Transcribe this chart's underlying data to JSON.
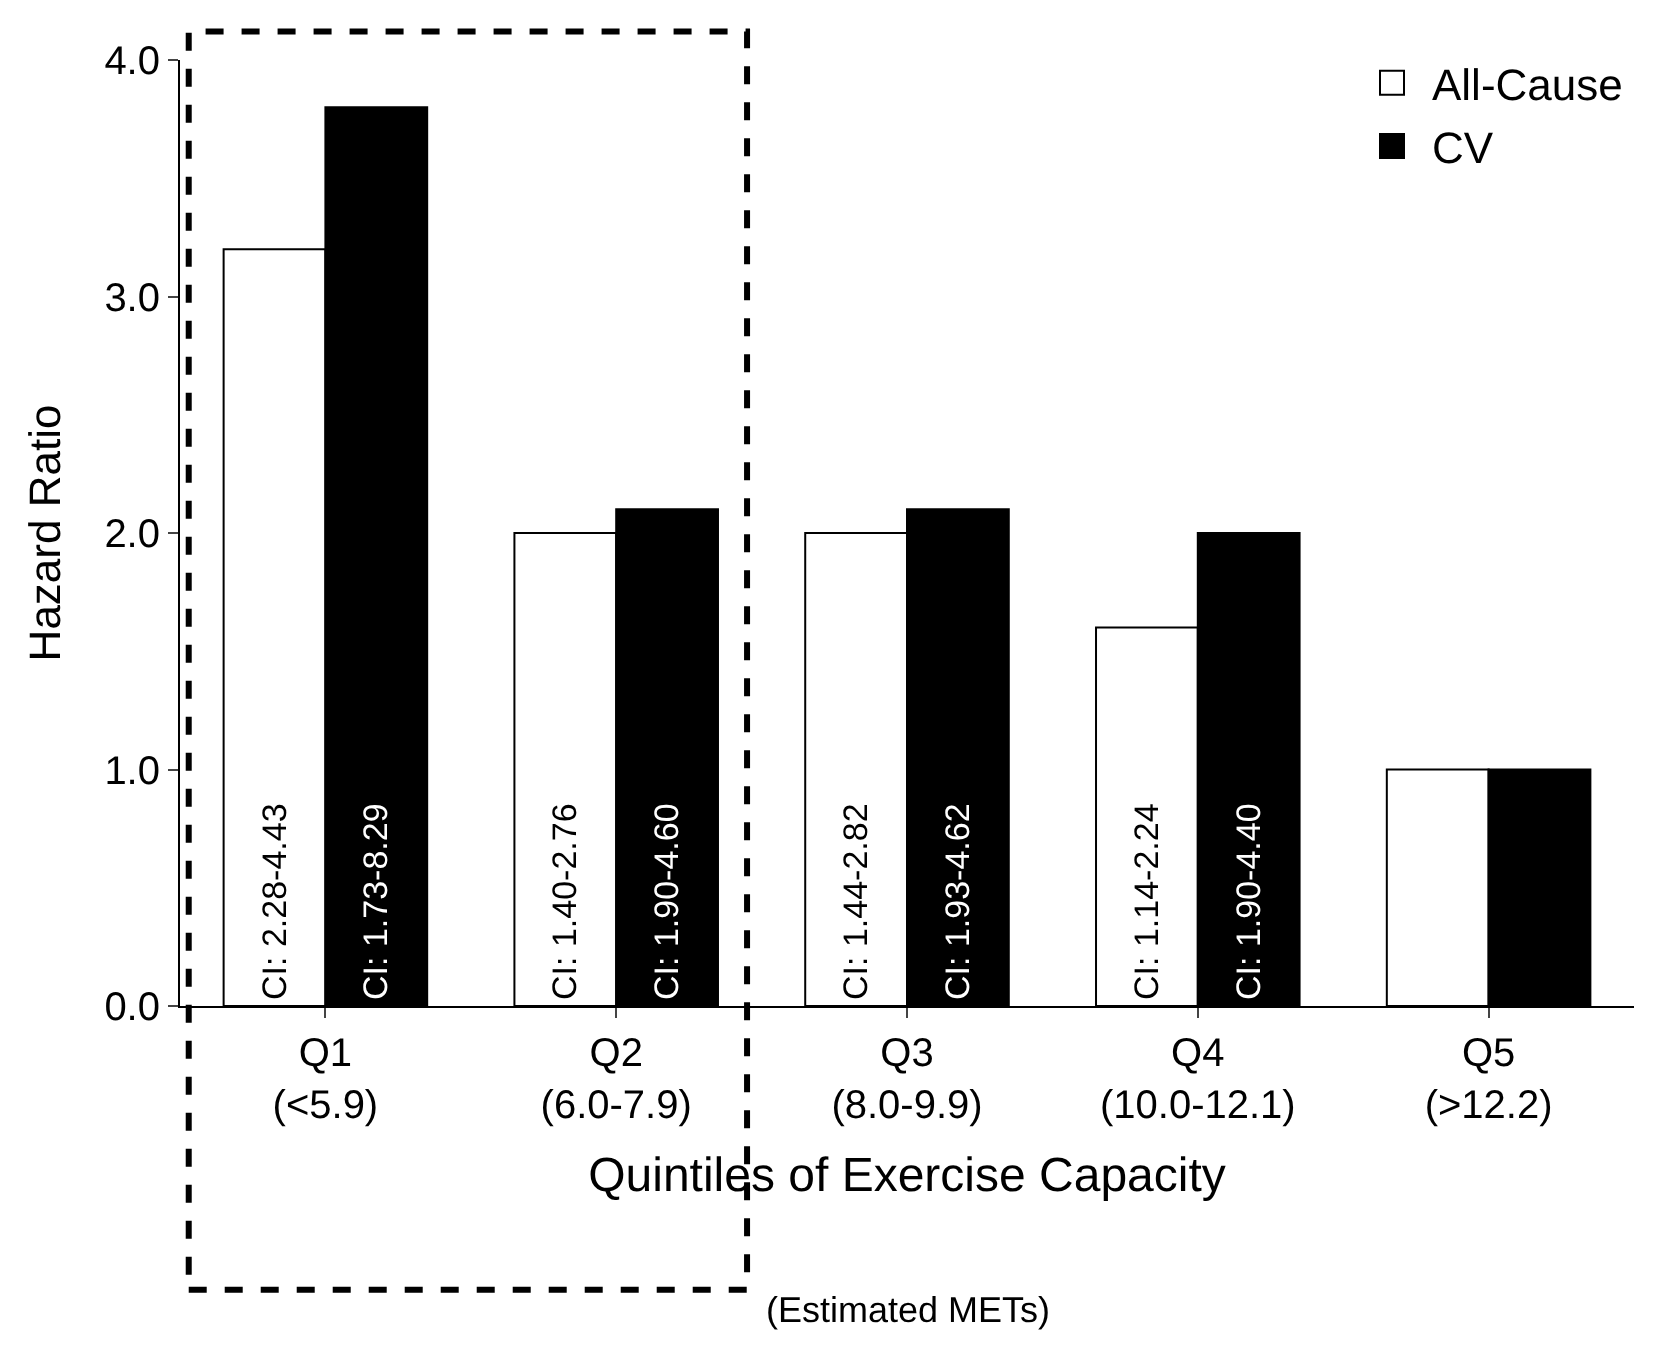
{
  "chart_data": {
    "type": "bar",
    "ylabel": "Hazard Ratio",
    "xlabel": "Quintiles of Exercise Capacity",
    "annotations": [
      "(Estimated METs)"
    ],
    "categories": [
      "Q1\n(<5.9)",
      "Q2\n(6.0-7.9)",
      "Q3\n(8.0-9.9)",
      "Q4\n(10.0-12.1)",
      "Q5\n(>12.2)"
    ],
    "series": [
      {
        "name": "All-Cause",
        "color": "#ffffff",
        "values": [
          3.2,
          2.0,
          2.0,
          1.6,
          1.0
        ],
        "value_labels": [
          "CI: 2.28-4.43",
          "CI: 1.40-2.76",
          "CI: 1.44-2.82",
          "CI: 1.14-2.24",
          null
        ]
      },
      {
        "name": "CV",
        "color": "#000000",
        "values": [
          3.8,
          2.1,
          2.1,
          2.0,
          1.0
        ],
        "value_labels": [
          "CI: 1.73-8.29",
          "CI: 1.90-4.60",
          "CI: 1.93-4.62",
          "CI: 1.90-4.40",
          null
        ]
      }
    ],
    "ylim": [
      0,
      4.0
    ],
    "yticks": [
      {
        "value": 0,
        "label": "0.0"
      },
      {
        "value": 1,
        "label": "1.0"
      },
      {
        "value": 2,
        "label": "2.0"
      },
      {
        "value": 3,
        "label": "3.0"
      },
      {
        "value": 4,
        "label": "4.0"
      }
    ],
    "legend": "top right"
  }
}
